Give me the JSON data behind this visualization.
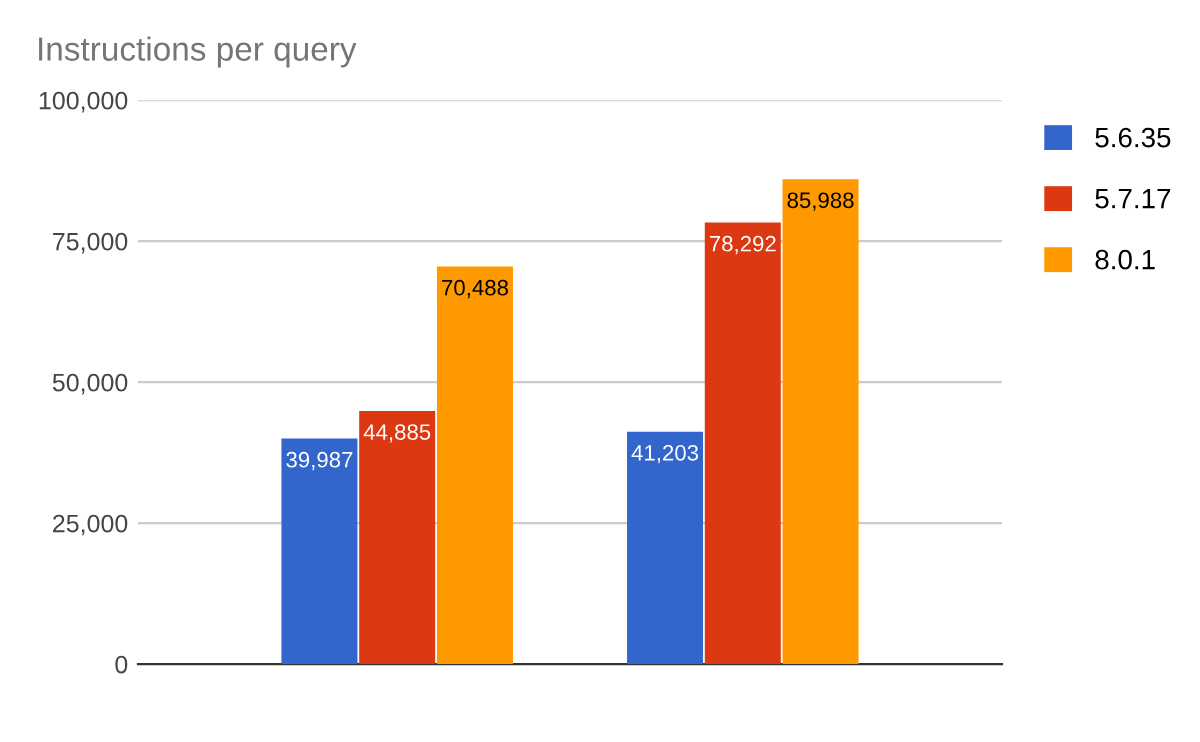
{
  "chart_data": {
    "type": "bar",
    "title": "Instructions per query",
    "categories": [
      null,
      null
    ],
    "series": [
      {
        "name": "5.6.35",
        "color": "#3366cc",
        "values": [
          39987,
          41203
        ],
        "value_labels": [
          "39,987",
          "41,203"
        ]
      },
      {
        "name": "5.7.17",
        "color": "#dc3912",
        "values": [
          44885,
          78292
        ],
        "value_labels": [
          "44,885",
          "78,292"
        ]
      },
      {
        "name": "8.0.1",
        "color": "#ff9900",
        "values": [
          70488,
          85988
        ],
        "value_labels": [
          "70,488",
          "85,988"
        ]
      }
    ],
    "ylim": [
      0,
      100000
    ],
    "yticks": [
      {
        "value": 0,
        "label": "0"
      },
      {
        "value": 25000,
        "label": "25,000"
      },
      {
        "value": 50000,
        "label": "50,000"
      },
      {
        "value": 75000,
        "label": "75,000"
      },
      {
        "value": 100000,
        "label": "100,000"
      }
    ],
    "grid": "y",
    "legend": "right"
  }
}
